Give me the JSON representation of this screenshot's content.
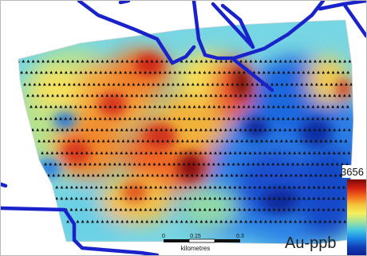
{
  "map": {
    "units_label": "Au-ppb",
    "colorbar": {
      "max_label": "3656",
      "gradient_colors": [
        "#7a0a06",
        "#d31f10",
        "#f26a1d",
        "#f5c23a",
        "#f7ef5a",
        "#a6e39a",
        "#48c8e0",
        "#1c88e8",
        "#123fb8",
        "#0a1d8d"
      ]
    },
    "scale_bar": {
      "tick_labels": [
        "0",
        "0.15",
        "0.3"
      ],
      "unit_label": "kilometres"
    },
    "boundary_line_color": "#1a22c9",
    "sample_marker_color": "#111111"
  }
}
